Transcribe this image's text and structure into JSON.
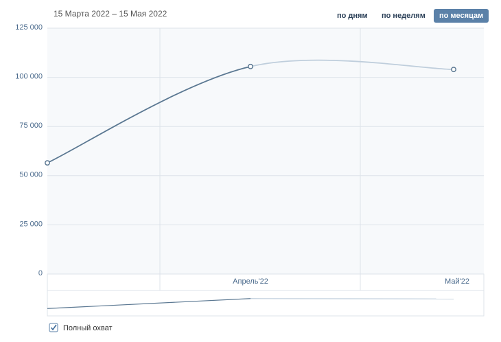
{
  "header": {
    "date_range": "15 Марта 2022 – 15 Мая 2022",
    "buttons": [
      "по дням",
      "по неделям",
      "по месяцам"
    ],
    "active_button": 2
  },
  "chart_data": {
    "type": "line",
    "categories": [
      null,
      "Апрель'22",
      "Май'22"
    ],
    "series": [
      {
        "name": "Полный охват",
        "color": "#5b7892",
        "projection_color": "#bfcedc",
        "values": [
          56500,
          105500,
          104000
        ]
      }
    ],
    "ylim": [
      0,
      125000
    ],
    "yticks": [
      0,
      {
        "value": 25000,
        "label": "25 000"
      },
      {
        "value": 50000,
        "label": "50 000"
      },
      {
        "value": 75000,
        "label": "75 000"
      },
      {
        "value": 100000,
        "label": "100 000"
      },
      {
        "value": 125000,
        "label": "125 000"
      }
    ],
    "grid": true
  }
}
